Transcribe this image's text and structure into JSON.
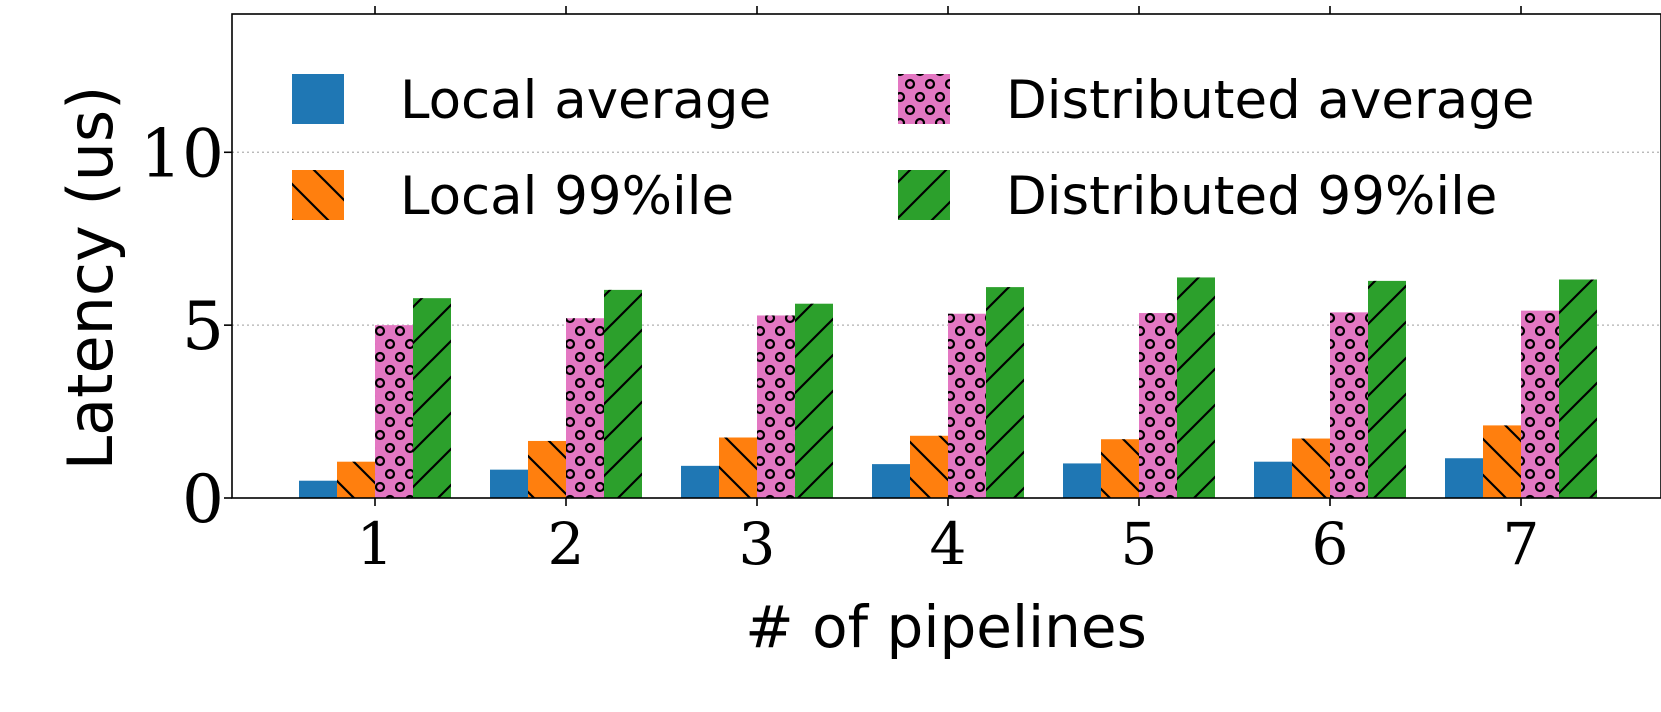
{
  "chart_data": {
    "type": "bar",
    "title": "",
    "xlabel": "# of pipelines",
    "ylabel": "Latency (us)",
    "categories": [
      "1",
      "2",
      "3",
      "4",
      "5",
      "6",
      "7"
    ],
    "ylim": [
      0,
      14
    ],
    "yticks": [
      0,
      5,
      10
    ],
    "grid": "horizontal dotted",
    "legend_position": "top",
    "series": [
      {
        "name": "Local average",
        "color": "#1f77b4",
        "pattern": "none",
        "values": [
          0.5,
          0.82,
          0.93,
          0.98,
          1.0,
          1.05,
          1.15
        ]
      },
      {
        "name": "Local 99%ile",
        "color": "#ff7f0e",
        "pattern": "backslash",
        "values": [
          1.05,
          1.65,
          1.75,
          1.8,
          1.7,
          1.72,
          2.1
        ]
      },
      {
        "name": "Distributed average",
        "color": "#e377c2",
        "pattern": "circles",
        "values": [
          5.0,
          5.2,
          5.28,
          5.33,
          5.35,
          5.37,
          5.42
        ]
      },
      {
        "name": "Distributed 99%ile",
        "color": "#2ca02c",
        "pattern": "slash",
        "values": [
          5.78,
          6.02,
          5.62,
          6.1,
          6.38,
          6.28,
          6.32
        ]
      }
    ]
  }
}
